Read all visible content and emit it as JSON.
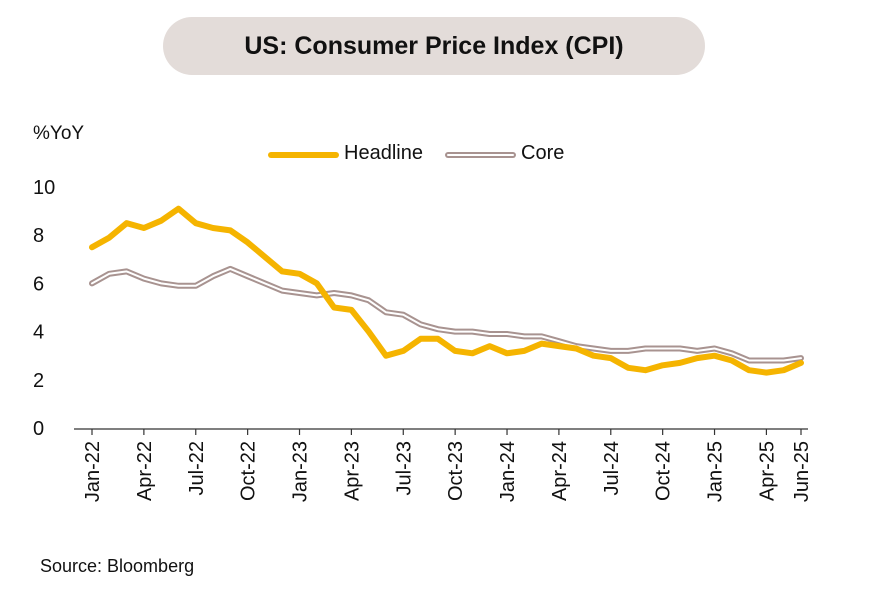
{
  "chart_data": {
    "type": "line",
    "title": "US: Consumer Price Index (CPI)",
    "ylabel": "%YoY",
    "xlabel": "",
    "ylim": [
      0,
      10
    ],
    "yticks": [
      0,
      2,
      4,
      6,
      8,
      10
    ],
    "grid": false,
    "legend": "top-center",
    "x": [
      "Jan-22",
      "Feb-22",
      "Mar-22",
      "Apr-22",
      "May-22",
      "Jun-22",
      "Jul-22",
      "Aug-22",
      "Sep-22",
      "Oct-22",
      "Nov-22",
      "Dec-22",
      "Jan-23",
      "Feb-23",
      "Mar-23",
      "Apr-23",
      "May-23",
      "Jun-23",
      "Jul-23",
      "Aug-23",
      "Sep-23",
      "Oct-23",
      "Nov-23",
      "Dec-23",
      "Jan-24",
      "Feb-24",
      "Mar-24",
      "Apr-24",
      "May-24",
      "Jun-24",
      "Jul-24",
      "Aug-24",
      "Sep-24",
      "Oct-24",
      "Nov-24",
      "Dec-24",
      "Jan-25",
      "Feb-25",
      "Mar-25",
      "Apr-25",
      "May-25",
      "Jun-25"
    ],
    "xtick_labels": [
      "Jan-22",
      "Apr-22",
      "Jul-22",
      "Oct-22",
      "Jan-23",
      "Apr-23",
      "Jul-23",
      "Oct-23",
      "Jan-24",
      "Apr-24",
      "Jul-24",
      "Oct-24",
      "Jan-25",
      "Apr-25",
      "Jun-25"
    ],
    "series": [
      {
        "name": "Headline",
        "color": "#f5b400",
        "values": [
          7.5,
          7.9,
          8.5,
          8.3,
          8.6,
          9.1,
          8.5,
          8.3,
          8.2,
          7.7,
          7.1,
          6.5,
          6.4,
          6.0,
          5.0,
          4.9,
          4.0,
          3.0,
          3.2,
          3.7,
          3.7,
          3.2,
          3.1,
          3.4,
          3.1,
          3.2,
          3.5,
          3.4,
          3.3,
          3.0,
          2.9,
          2.5,
          2.4,
          2.6,
          2.7,
          2.9,
          3.0,
          2.8,
          2.4,
          2.3,
          2.4,
          2.7
        ]
      },
      {
        "name": "Core",
        "color": "#a89390",
        "values": [
          6.0,
          6.4,
          6.5,
          6.2,
          6.0,
          5.9,
          5.9,
          6.3,
          6.6,
          6.3,
          6.0,
          5.7,
          5.6,
          5.5,
          5.6,
          5.5,
          5.3,
          4.8,
          4.7,
          4.3,
          4.1,
          4.0,
          4.0,
          3.9,
          3.9,
          3.8,
          3.8,
          3.6,
          3.4,
          3.3,
          3.2,
          3.2,
          3.3,
          3.3,
          3.3,
          3.2,
          3.3,
          3.1,
          2.8,
          2.8,
          2.8,
          2.9
        ]
      }
    ],
    "source": "Source: Bloomberg"
  }
}
